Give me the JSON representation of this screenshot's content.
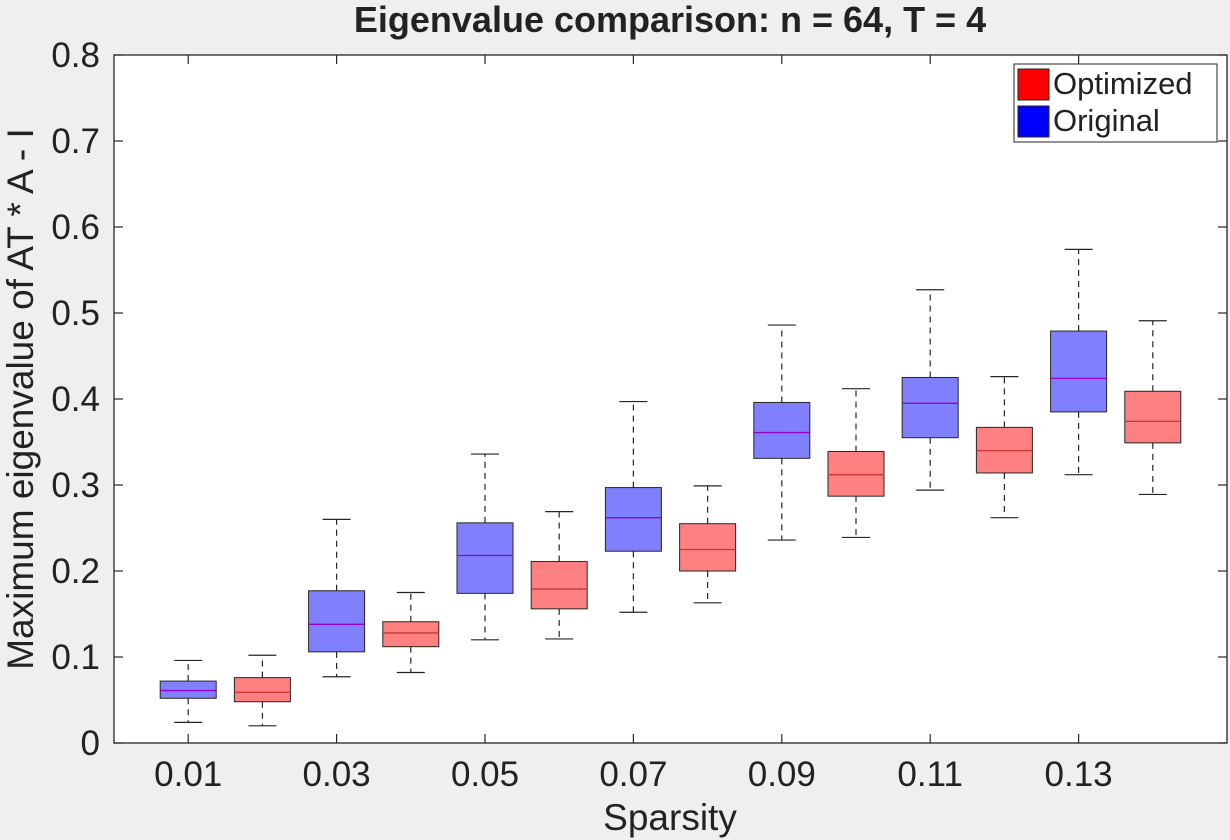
{
  "chart_data": {
    "type": "boxplot",
    "title": "Eigenvalue comparison: n = 64, T = 4",
    "xlabel": "Sparsity",
    "ylabel": "Maximum eigenvalue of AT * A - I",
    "ylim": [
      0,
      0.8
    ],
    "xlim": [
      0,
      15
    ],
    "yticks": [
      "0",
      "0.1",
      "0.2",
      "0.3",
      "0.4",
      "0.5",
      "0.6",
      "0.7",
      "0.8"
    ],
    "xtick_labels": [
      "0.01",
      "0.03",
      "0.05",
      "0.07",
      "0.09",
      "0.11",
      "0.13"
    ],
    "legend_position": "top-right",
    "series": [
      {
        "name": "Optimized",
        "legend_color": "#ff0000",
        "box_color": "#ff8080",
        "median_color": "#cc3333",
        "boxes": [
          {
            "x": 2,
            "whisker_low": 0.02,
            "q1": 0.048,
            "median": 0.059,
            "q3": 0.076,
            "whisker_high": 0.102
          },
          {
            "x": 4,
            "whisker_low": 0.082,
            "q1": 0.112,
            "median": 0.128,
            "q3": 0.141,
            "whisker_high": 0.175
          },
          {
            "x": 6,
            "whisker_low": 0.121,
            "q1": 0.156,
            "median": 0.179,
            "q3": 0.211,
            "whisker_high": 0.269
          },
          {
            "x": 8,
            "whisker_low": 0.163,
            "q1": 0.2,
            "median": 0.225,
            "q3": 0.255,
            "whisker_high": 0.299
          },
          {
            "x": 10,
            "whisker_low": 0.239,
            "q1": 0.287,
            "median": 0.312,
            "q3": 0.339,
            "whisker_high": 0.412
          },
          {
            "x": 12,
            "whisker_low": 0.262,
            "q1": 0.314,
            "median": 0.34,
            "q3": 0.367,
            "whisker_high": 0.426
          },
          {
            "x": 14,
            "whisker_low": 0.289,
            "q1": 0.349,
            "median": 0.374,
            "q3": 0.409,
            "whisker_high": 0.491
          }
        ]
      },
      {
        "name": "Original",
        "legend_color": "#0000ff",
        "box_color": "#8080ff",
        "median_color": "#9900cc",
        "boxes": [
          {
            "x": 1,
            "whisker_low": 0.024,
            "q1": 0.052,
            "median": 0.061,
            "q3": 0.072,
            "whisker_high": 0.096
          },
          {
            "x": 3,
            "whisker_low": 0.077,
            "q1": 0.106,
            "median": 0.138,
            "q3": 0.177,
            "whisker_high": 0.26
          },
          {
            "x": 5,
            "whisker_low": 0.12,
            "q1": 0.174,
            "median": 0.218,
            "q3": 0.256,
            "whisker_high": 0.336
          },
          {
            "x": 7,
            "whisker_low": 0.152,
            "q1": 0.223,
            "median": 0.262,
            "q3": 0.297,
            "whisker_high": 0.397
          },
          {
            "x": 9,
            "whisker_low": 0.236,
            "q1": 0.331,
            "median": 0.361,
            "q3": 0.396,
            "whisker_high": 0.486
          },
          {
            "x": 11,
            "whisker_low": 0.294,
            "q1": 0.355,
            "median": 0.395,
            "q3": 0.425,
            "whisker_high": 0.527
          },
          {
            "x": 13,
            "whisker_low": 0.312,
            "q1": 0.385,
            "median": 0.424,
            "q3": 0.479,
            "whisker_high": 0.574
          }
        ]
      }
    ]
  }
}
